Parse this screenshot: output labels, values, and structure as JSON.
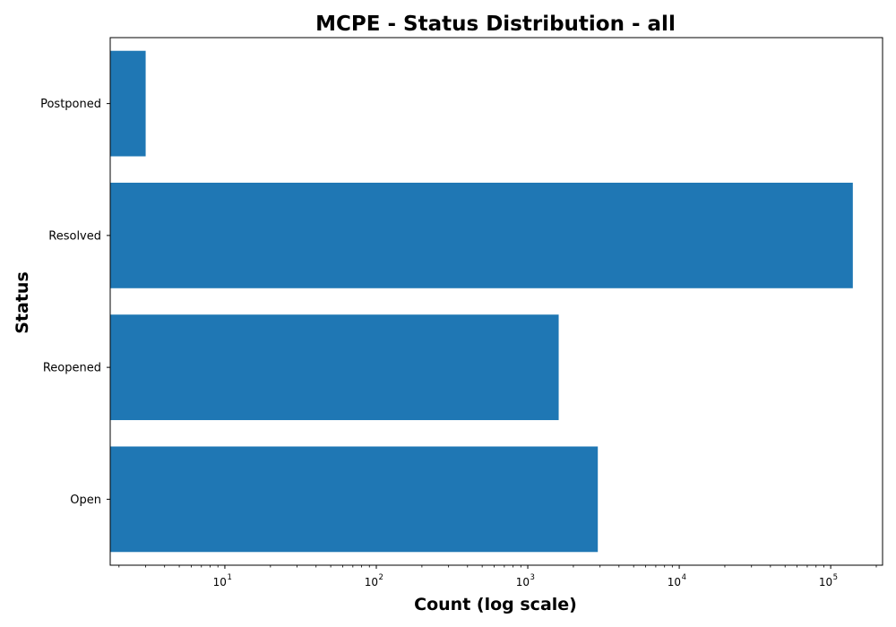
{
  "chart_data": {
    "type": "bar",
    "orientation": "horizontal",
    "title": "MCPE - Status Distribution - all",
    "xlabel": "Count (log scale)",
    "ylabel": "Status",
    "x_scale": "log",
    "xlim": [
      1.75,
      220000
    ],
    "x_ticks": [
      {
        "value": 10,
        "base": "10",
        "exp": "1"
      },
      {
        "value": 100,
        "base": "10",
        "exp": "2"
      },
      {
        "value": 1000,
        "base": "10",
        "exp": "3"
      },
      {
        "value": 10000,
        "base": "10",
        "exp": "4"
      },
      {
        "value": 100000,
        "base": "10",
        "exp": "5"
      }
    ],
    "categories": [
      "Open",
      "Reopened",
      "Resolved",
      "Postponed"
    ],
    "values": [
      2900,
      1600,
      140000,
      3
    ],
    "grid": false,
    "legend": "none",
    "bar_color": "#1f77b4"
  }
}
